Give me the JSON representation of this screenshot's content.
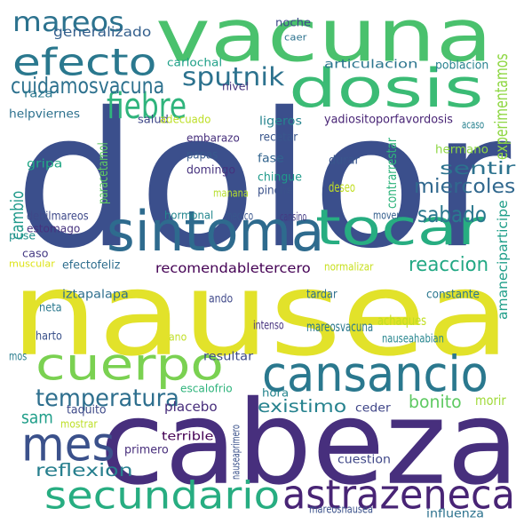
{
  "words": [
    {
      "text": "dolor",
      "color": "#3b4f8c"
    },
    {
      "text": "nausea",
      "color": "#e2e22a"
    },
    {
      "text": "cabeza",
      "color": "#472f7d"
    },
    {
      "text": "vacuna",
      "color": "#4ac16d"
    },
    {
      "text": "dosis",
      "color": "#3bbb75"
    },
    {
      "text": "sintoma",
      "color": "#2e6b8e"
    },
    {
      "text": "tocar",
      "color": "#27ad81"
    },
    {
      "text": "cansancio",
      "color": "#2a788e"
    },
    {
      "text": "cuerpo",
      "color": "#7ad151"
    },
    {
      "text": "mes",
      "color": "#3b518b"
    },
    {
      "text": "astrazeneca",
      "color": "#482475"
    },
    {
      "text": "secundario",
      "color": "#27ad81"
    },
    {
      "text": "efecto",
      "color": "#2a788e"
    },
    {
      "text": "mareos",
      "color": "#2c728e"
    },
    {
      "text": "fiebre",
      "color": "#2fb47c"
    },
    {
      "text": "sputnik",
      "color": "#2c728e"
    },
    {
      "text": "temperatura",
      "color": "#2e6f8e"
    },
    {
      "text": "sabado",
      "color": "#2a788e"
    },
    {
      "text": "cuidamosvacuna",
      "color": "#2d718e"
    },
    {
      "text": "reaccion",
      "color": "#22a884"
    },
    {
      "text": "sentir",
      "color": "#2c728e"
    },
    {
      "text": "miercoles",
      "color": "#31688e"
    },
    {
      "text": "reflexion",
      "color": "#277f8e"
    },
    {
      "text": "existimo",
      "color": "#26828e"
    },
    {
      "text": "bonito",
      "color": "#5ec962"
    },
    {
      "text": "generalizado",
      "color": "#35608d"
    },
    {
      "text": "experimentamos",
      "color": "#8fd744"
    },
    {
      "text": "cambio",
      "color": "#1f998a"
    },
    {
      "text": "articulacion",
      "color": "#2b758e"
    },
    {
      "text": "recomendabletercero",
      "color": "#440154"
    },
    {
      "text": "amaneciparticipe",
      "color": "#1f9e89"
    },
    {
      "text": "sam",
      "color": "#1f9e89"
    },
    {
      "text": "placebo",
      "color": "#472d7b"
    },
    {
      "text": "ceder",
      "color": "#404688"
    },
    {
      "text": "morir",
      "color": "#a0da39"
    },
    {
      "text": "noche",
      "color": "#3e4a89"
    },
    {
      "text": "caer",
      "color": "#2c728e"
    },
    {
      "text": "carlochal",
      "color": "#1fa088"
    },
    {
      "text": "poblacion",
      "color": "#26818e"
    },
    {
      "text": "nivel",
      "color": "#46337e"
    },
    {
      "text": "raza",
      "color": "#2a788e"
    },
    {
      "text": "helpviernes",
      "color": "#2d718e"
    },
    {
      "text": "salud",
      "color": "#3f4788"
    },
    {
      "text": "adecuado",
      "color": "#bddf26"
    },
    {
      "text": "ligeros",
      "color": "#25848e"
    },
    {
      "text": "yadiositoporfavordosis",
      "color": "#482475"
    },
    {
      "text": "acaso",
      "color": "#26818e"
    },
    {
      "text": "recetar",
      "color": "#39568c"
    },
    {
      "text": "embarazo",
      "color": "#462f7c"
    },
    {
      "text": "hermano",
      "color": "#8fd744"
    },
    {
      "text": "papas",
      "color": "#38598c"
    },
    {
      "text": "domingo",
      "color": "#46327e"
    },
    {
      "text": "gripa",
      "color": "#22a785"
    },
    {
      "text": "paracetamol",
      "color": "#5ec962"
    },
    {
      "text": "fase",
      "color": "#32648e"
    },
    {
      "text": "durar",
      "color": "#39568c"
    },
    {
      "text": "contrarrestar",
      "color": "#2fb47c"
    },
    {
      "text": "chingue",
      "color": "#1f9a8a"
    },
    {
      "text": "pinche",
      "color": "#3b528b"
    },
    {
      "text": "deseo",
      "color": "#c2df23"
    },
    {
      "text": "manana",
      "color": "#b5de2b"
    },
    {
      "text": "hormonal",
      "color": "#24878e"
    },
    {
      "text": "medico",
      "color": "#39568c"
    },
    {
      "text": "cansino",
      "color": "#443a83"
    },
    {
      "text": "mover",
      "color": "#355f8d"
    },
    {
      "text": "debilmareos",
      "color": "#3e4989"
    },
    {
      "text": "estomago",
      "color": "#46327e"
    },
    {
      "text": "puse",
      "color": "#21918c"
    },
    {
      "text": "caso",
      "color": "#443983"
    },
    {
      "text": "muscular",
      "color": "#dde318"
    },
    {
      "text": "efectofeliz",
      "color": "#2e6e8e"
    },
    {
      "text": "normalizar",
      "color": "#c8e020"
    },
    {
      "text": "iztapalapa",
      "color": "#2e6f8e"
    },
    {
      "text": "tardar",
      "color": "#2e6f8e"
    },
    {
      "text": "constante",
      "color": "#2a778e"
    },
    {
      "text": "ando",
      "color": "#3f4889"
    },
    {
      "text": "neta",
      "color": "#2a788e"
    },
    {
      "text": "achaques",
      "color": "#c2df23"
    },
    {
      "text": "intenso",
      "color": "#46327e"
    },
    {
      "text": "harto",
      "color": "#3b528b"
    },
    {
      "text": "ano",
      "color": "#c0df25"
    },
    {
      "text": "mareosvacuna",
      "color": "#2a788e"
    },
    {
      "text": "nauseahabian",
      "color": "#25858e"
    },
    {
      "text": "mos",
      "color": "#287c8e"
    },
    {
      "text": "resultar",
      "color": "#3e4a89"
    },
    {
      "text": "escalofrio",
      "color": "#2fb47c"
    },
    {
      "text": "hora",
      "color": "#25858e"
    },
    {
      "text": "nauseaprimero",
      "color": "#3b528b"
    },
    {
      "text": "taquito",
      "color": "#3e4a89"
    },
    {
      "text": "mostrar",
      "color": "#bddf26"
    },
    {
      "text": "terrible",
      "color": "#440154"
    },
    {
      "text": "primero",
      "color": "#472d7b"
    },
    {
      "text": "cuestion",
      "color": "#3f4788"
    },
    {
      "text": "mareosnausea",
      "color": "#3b528b"
    },
    {
      "text": "influenza",
      "color": "#2c728e"
    }
  ]
}
